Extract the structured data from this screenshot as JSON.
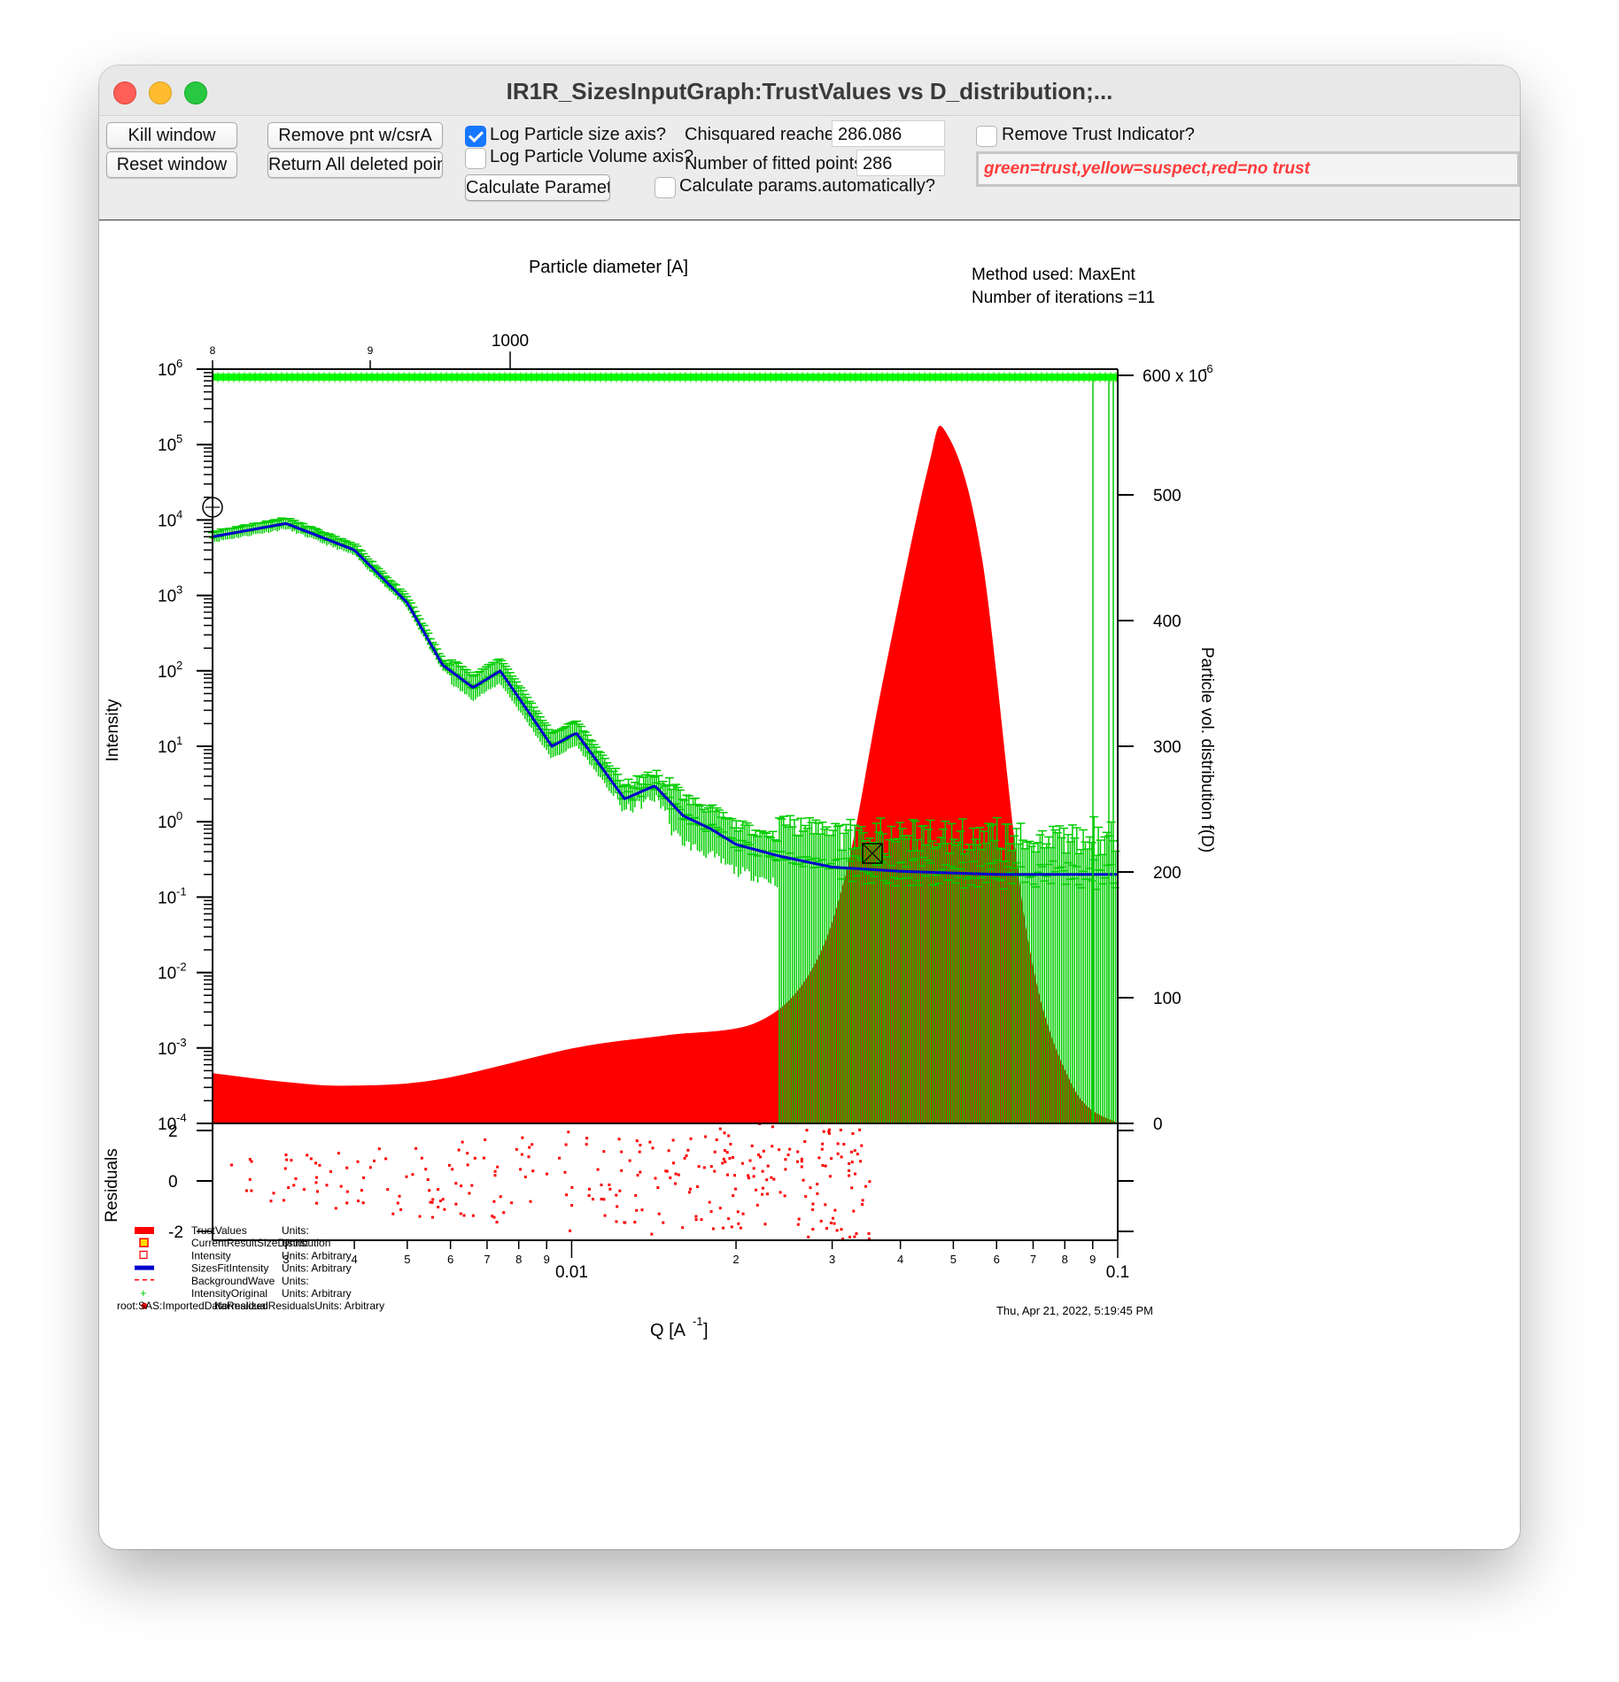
{
  "window": {
    "title": "IR1R_SizesInputGraph:TrustValues vs D_distribution;..."
  },
  "controls": {
    "kill_window": "Kill window",
    "reset_window": "Reset window",
    "remove_pnt": "Remove pnt w/csrA",
    "return_deleted": "Return All deleted point",
    "calculate_params": "Calculate Parameters",
    "log_size_axis_label": "Log Particle size axis?",
    "log_size_axis_checked": true,
    "log_volume_axis_label": "Log Particle Volume axis?",
    "log_volume_axis_checked": false,
    "calc_auto_label": "Calculate params.automatically?",
    "calc_auto_checked": false,
    "chisq_label": "Chisquared reached",
    "chisq_value": "286.086",
    "npts_label": "Number of fitted points",
    "npts_value": "286",
    "remove_trust_label": "Remove Trust Indicator?",
    "remove_trust_checked": false,
    "trust_legend": "green=trust,yellow=suspect,red=no trust"
  },
  "graph": {
    "top_axis_label": "Particle diameter [A]",
    "method_text": "Method used: MaxEnt",
    "iterations_text": "Number of iterations =11",
    "left_axis_label": "Intensity",
    "right_axis_label": "Particle vol. distribution f(D)",
    "residuals_label": "Residuals",
    "bottom_axis_label": "Q [A",
    "bottom_axis_sup": "-1",
    "bottom_axis_end": "]",
    "timestamp": "Thu, Apr 21, 2022, 5:19:45 PM",
    "right_top_label": "600 x 10",
    "right_top_sup": "-6",
    "left_ticks": [
      {
        "base": "10",
        "exp": "6"
      },
      {
        "base": "10",
        "exp": "5"
      },
      {
        "base": "10",
        "exp": "4"
      },
      {
        "base": "10",
        "exp": "3"
      },
      {
        "base": "10",
        "exp": "2"
      },
      {
        "base": "10",
        "exp": "1"
      },
      {
        "base": "10",
        "exp": "0"
      },
      {
        "base": "10",
        "exp": "-1"
      },
      {
        "base": "10",
        "exp": "-2"
      },
      {
        "base": "10",
        "exp": "-3"
      },
      {
        "base": "10",
        "exp": "-4"
      }
    ],
    "right_ticks": [
      "500",
      "400",
      "300",
      "200",
      "100",
      "0"
    ],
    "residual_ticks": [
      "2",
      "0",
      "-2"
    ],
    "top_ticks": [
      "8",
      "9",
      "1000"
    ],
    "bottom_ticks": [
      "3",
      "4",
      "5",
      "6",
      "7",
      "8",
      "9",
      "0.01",
      "2",
      "3",
      "4",
      "5",
      "6",
      "7",
      "8",
      "9",
      "0.1"
    ],
    "legend": [
      {
        "name": "TrustValues",
        "units": "Units:",
        "color": "#ff0000",
        "symbol": "bar"
      },
      {
        "name": "CurrentResultSizeDistribution",
        "units": "Units:",
        "color": "#ff0000",
        "symbol": "box-yellow"
      },
      {
        "name": "Intensity",
        "units": "Units:  Arbitrary",
        "color": "#ff0000",
        "symbol": "open-square"
      },
      {
        "name": "SizesFitIntensity",
        "units": "Units:  Arbitrary",
        "color": "#0000cc",
        "symbol": "thick-line"
      },
      {
        "name": "BackgroundWave",
        "units": "Units:",
        "color": "#ff0000",
        "symbol": "dash"
      },
      {
        "name": "IntensityOriginal",
        "units": "Units:  Arbitrary",
        "color": "#00cc00",
        "symbol": "plus"
      },
      {
        "name": "root:SAS:ImportedDataResidual",
        "units": "NormalizedResidualsUnits:  Arbitrary",
        "color": "#ff0000",
        "symbol": "dot"
      }
    ]
  },
  "chart_data": {
    "type": "line",
    "x_axis": {
      "label": "Q [A-1]",
      "scale": "log",
      "range": [
        0.0022,
        0.1
      ]
    },
    "top_axis": {
      "label": "Particle diameter [A]",
      "scale": "log"
    },
    "y_left": {
      "label": "Intensity",
      "scale": "log",
      "range": [
        0.0001,
        1000000
      ]
    },
    "y_right": {
      "label": "Particle vol. distribution f(D)",
      "range": [
        0,
        0.0006
      ]
    },
    "y_residuals": {
      "label": "Residuals",
      "range": [
        -2,
        2
      ]
    },
    "series": [
      {
        "name": "IntensityOriginal",
        "color": "#00cc00",
        "x": [
          0.0022,
          0.003,
          0.004,
          0.005,
          0.0058,
          0.0066,
          0.0074,
          0.0083,
          0.0092,
          0.0102,
          0.0112,
          0.0125,
          0.0142,
          0.016,
          0.018,
          0.02,
          0.024,
          0.03,
          0.04,
          0.06,
          0.1
        ],
        "y": [
          6000,
          9000,
          4000,
          800,
          120,
          60,
          100,
          30,
          10,
          15,
          6,
          2,
          3,
          1.2,
          0.8,
          0.5,
          0.35,
          0.25,
          0.22,
          0.2,
          0.2
        ]
      },
      {
        "name": "CurrentResultSizeDistribution",
        "color": "#ff0000",
        "type": "area",
        "x_frac": [
          0.0,
          0.08,
          0.15,
          0.25,
          0.4,
          0.5,
          0.6,
          0.66,
          0.7,
          0.74,
          0.79,
          0.81,
          0.85,
          0.9,
          0.95,
          1.0
        ],
        "y": [
          4e-05,
          3.3e-05,
          3e-05,
          3.5e-05,
          6e-05,
          7e-05,
          8e-05,
          0.00012,
          0.0002,
          0.00035,
          0.00052,
          0.00055,
          0.00045,
          0.00015,
          3e-05,
          0.0
        ]
      },
      {
        "name": "TrustValues",
        "color": "#00cc00",
        "y_left": 1000000
      }
    ],
    "legend": "bottom-left",
    "grid": false
  }
}
